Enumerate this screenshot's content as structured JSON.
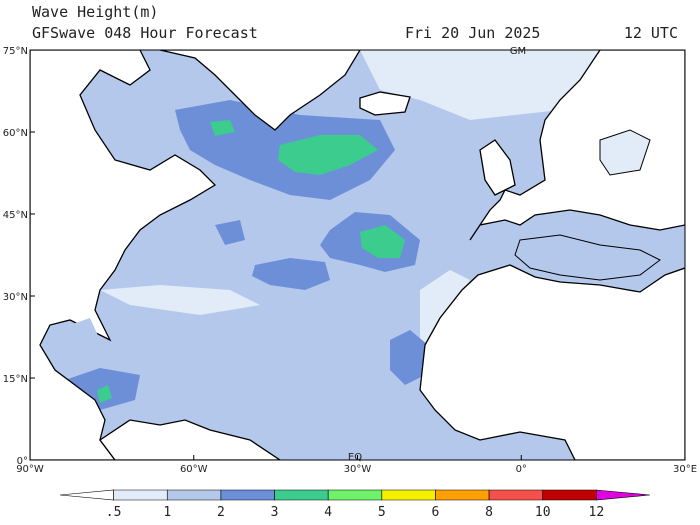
{
  "header": {
    "title": "Wave Height(m)",
    "subtitle": "GFSwave 048 Hour Forecast",
    "date": "Fri 20 Jun 2025",
    "time": "12 UTC"
  },
  "axes": {
    "lat_labels": [
      "75°N",
      "60°N",
      "45°N",
      "30°N",
      "15°N",
      "0°"
    ],
    "lon_labels": [
      "90°W",
      "60°W",
      "30°W",
      "0°",
      "30°E"
    ],
    "meridian_label": "GM",
    "equator_label": "EQ"
  },
  "colorbar": {
    "labels": [
      ".5",
      "1",
      "2",
      "3",
      "4",
      "5",
      "6",
      "8",
      "10",
      "12"
    ],
    "colors": [
      "#ffffff",
      "#e1ecf8",
      "#b4c8ec",
      "#6d8fd8",
      "#3ccc8e",
      "#6ef26a",
      "#f5f000",
      "#ffa000",
      "#f5504a",
      "#c00000",
      "#e000e0"
    ]
  }
}
